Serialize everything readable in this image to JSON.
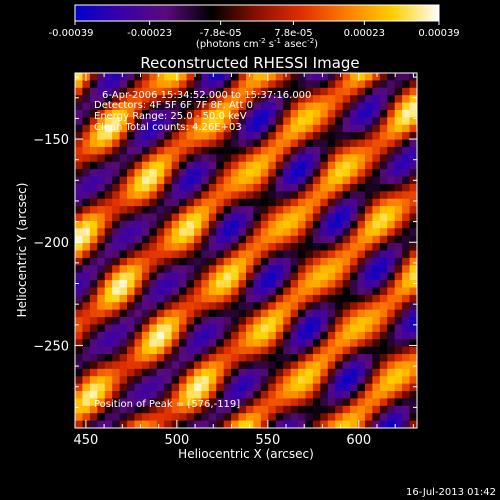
{
  "colorbar": {
    "ticks": [
      "-0.00039",
      "-0.00023",
      "-7.8e-05",
      "7.8e-05",
      "0.00023",
      "0.00039"
    ],
    "tick_values": [
      -0.00039,
      -0.00023,
      -7.8e-05,
      7.8e-05,
      0.00023,
      0.00039
    ],
    "range": [
      -0.00039,
      0.00039
    ],
    "unit_main": "(photons cm",
    "unit_exp1": "-2",
    "unit_mid": " s",
    "unit_exp2": "-1",
    "unit_end": " asec",
    "unit_exp3": "-2",
    "unit_close": ")",
    "colormap": [
      "#0000cc",
      "#3a00a8",
      "#5a0a7a",
      "#000000",
      "#8a1000",
      "#e03000",
      "#ff8000",
      "#ffd000",
      "#ffffff"
    ]
  },
  "chart_data": {
    "type": "heatmap",
    "title": "Reconstructed RHESSI Image",
    "xlabel": "Heliocentric X (arcsec)",
    "ylabel": "Heliocentric Y (arcsec)",
    "xlim": [
      444,
      632
    ],
    "ylim": [
      -290,
      -118
    ],
    "xticks": [
      450,
      500,
      550,
      600
    ],
    "yticks": [
      -150,
      -200,
      -250
    ],
    "xtick_labels": [
      "450",
      "500",
      "550",
      "600"
    ],
    "ytick_labels": [
      "−150",
      "−200",
      "−250"
    ],
    "annotations": {
      "line1": "6-Apr-2006 15:34:52.000 to 15:37:16.000",
      "line2": "Detectors: 4F 5F 6F 7F 8F, Att 0",
      "line3": "Energy Range: 25.0 - 50.0 keV",
      "line4": "Clean     Total counts: 4.26E+03",
      "peak": "Position of Peak = [576,-119]"
    },
    "peak": {
      "x": 576,
      "y": -119
    },
    "grid": false
  },
  "footer": {
    "timestamp": "16-Jul-2013 01:42"
  }
}
